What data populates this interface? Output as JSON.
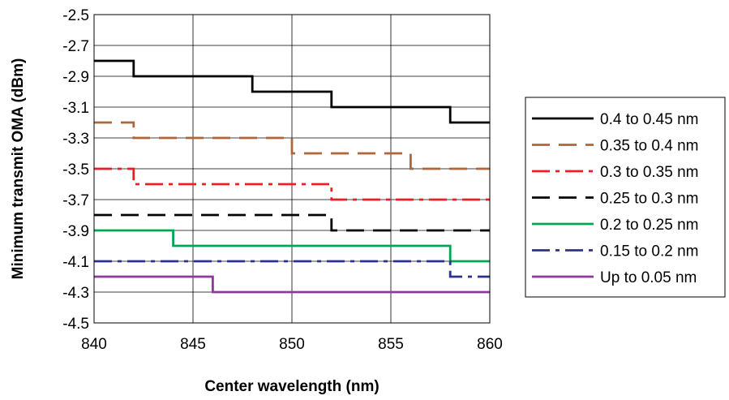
{
  "chart_data": {
    "type": "line",
    "title": "",
    "xlabel": "Center wavelength (nm)",
    "ylabel": "Minimum transmit OMA (dBm)",
    "xlim": [
      840,
      860
    ],
    "ylim": [
      -4.5,
      -2.5
    ],
    "xticks": [
      840,
      845,
      850,
      855,
      860
    ],
    "yticks": [
      -2.5,
      -2.7,
      -2.9,
      -3.1,
      -3.3,
      -3.5,
      -3.7,
      -3.9,
      -4.1,
      -4.3,
      -4.5
    ],
    "ytick_labels": [
      "-2.5",
      "-2.7",
      "-2.9",
      "-3.1",
      "-3.3",
      "-3.5",
      "-3.7",
      "-3.9",
      "-4.1",
      "-4.3",
      "-4.5"
    ],
    "grid": true,
    "legend_position": "right",
    "step": true,
    "series": [
      {
        "name": "0.4 to 0.45 nm",
        "color": "#000000",
        "dash": "solid",
        "x": [
          840,
          842,
          848,
          852,
          858,
          860
        ],
        "y": [
          -2.8,
          -2.9,
          -3.0,
          -3.1,
          -3.2,
          -3.2
        ]
      },
      {
        "name": "0.35 to 0.4 nm",
        "color": "#b0663a",
        "dash": "dash",
        "x": [
          840,
          842,
          850,
          856,
          860
        ],
        "y": [
          -3.2,
          -3.3,
          -3.4,
          -3.5,
          -3.5
        ]
      },
      {
        "name": "0.3 to 0.35 nm",
        "color": "#ee1c24",
        "dash": "dashdot",
        "x": [
          840,
          842,
          852,
          860
        ],
        "y": [
          -3.5,
          -3.6,
          -3.7,
          -3.7
        ]
      },
      {
        "name": "0.25 to 0.3 nm",
        "color": "#000000",
        "dash": "dash",
        "x": [
          840,
          852,
          860
        ],
        "y": [
          -3.8,
          -3.9,
          -3.9
        ]
      },
      {
        "name": "0.2 to 0.25 nm",
        "color": "#00a651",
        "dash": "solid",
        "x": [
          840,
          844,
          858,
          860
        ],
        "y": [
          -3.9,
          -4.0,
          -4.1,
          -4.1
        ]
      },
      {
        "name": "0.15 to 0.2 nm",
        "color": "#2e3192",
        "dash": "dashdot",
        "x": [
          840,
          858,
          860
        ],
        "y": [
          -4.1,
          -4.2,
          -4.2
        ]
      },
      {
        "name": "Up to 0.05 nm",
        "color": "#8e3a9c",
        "dash": "solid",
        "x": [
          840,
          846,
          860
        ],
        "y": [
          -4.2,
          -4.3,
          -4.3
        ]
      }
    ]
  }
}
